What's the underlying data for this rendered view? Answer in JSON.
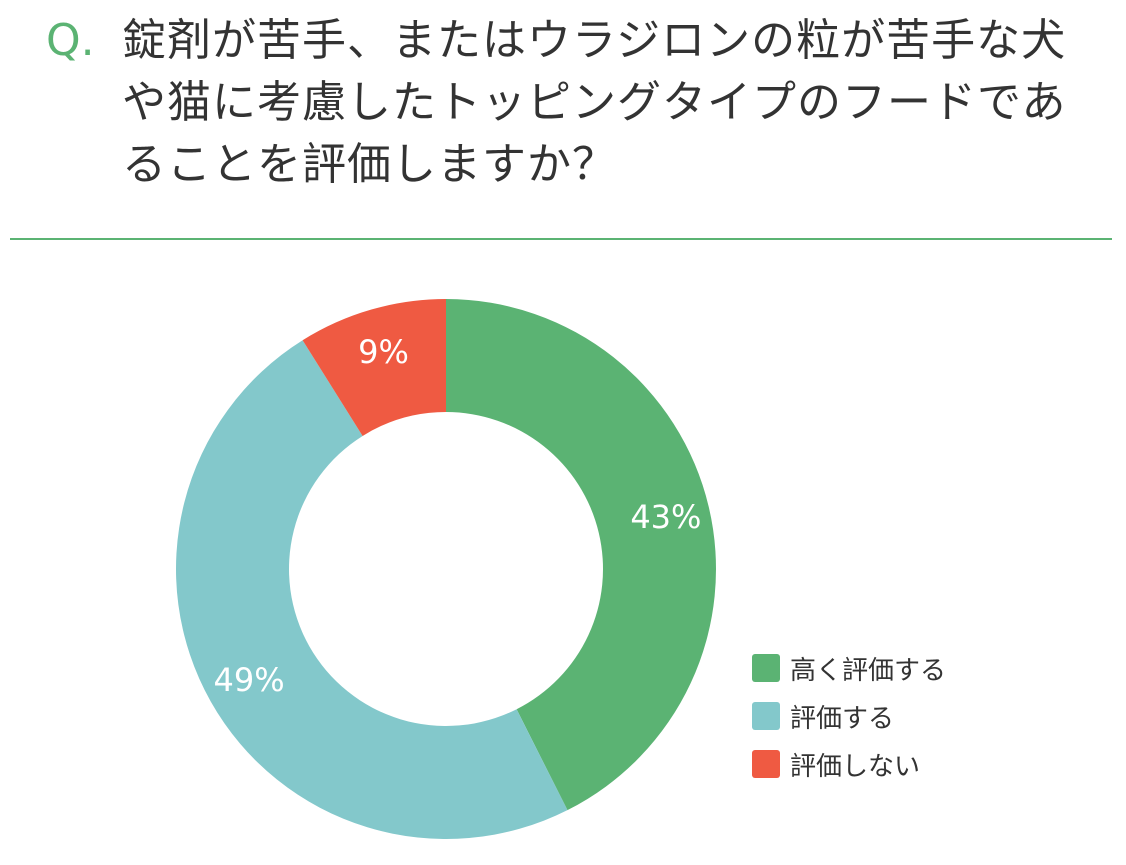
{
  "question": {
    "mark": "Q.",
    "text": "錠剤が苦手、またはウラジロンの粒が苦手な犬や猫に考慮したトッピングタイプのフードであることを評価しますか？"
  },
  "chart_data": {
    "type": "pie",
    "style": "donut",
    "title": "",
    "categories": [
      "高く評価する",
      "評価する",
      "評価しない"
    ],
    "values": [
      43,
      49,
      9
    ],
    "labels": [
      "43%",
      "49%",
      "9%"
    ],
    "colors": [
      "#5bb373",
      "#83c8cb",
      "#ef5a42"
    ],
    "legend": "bottom-right",
    "start": "12 o'clock, clockwise"
  }
}
